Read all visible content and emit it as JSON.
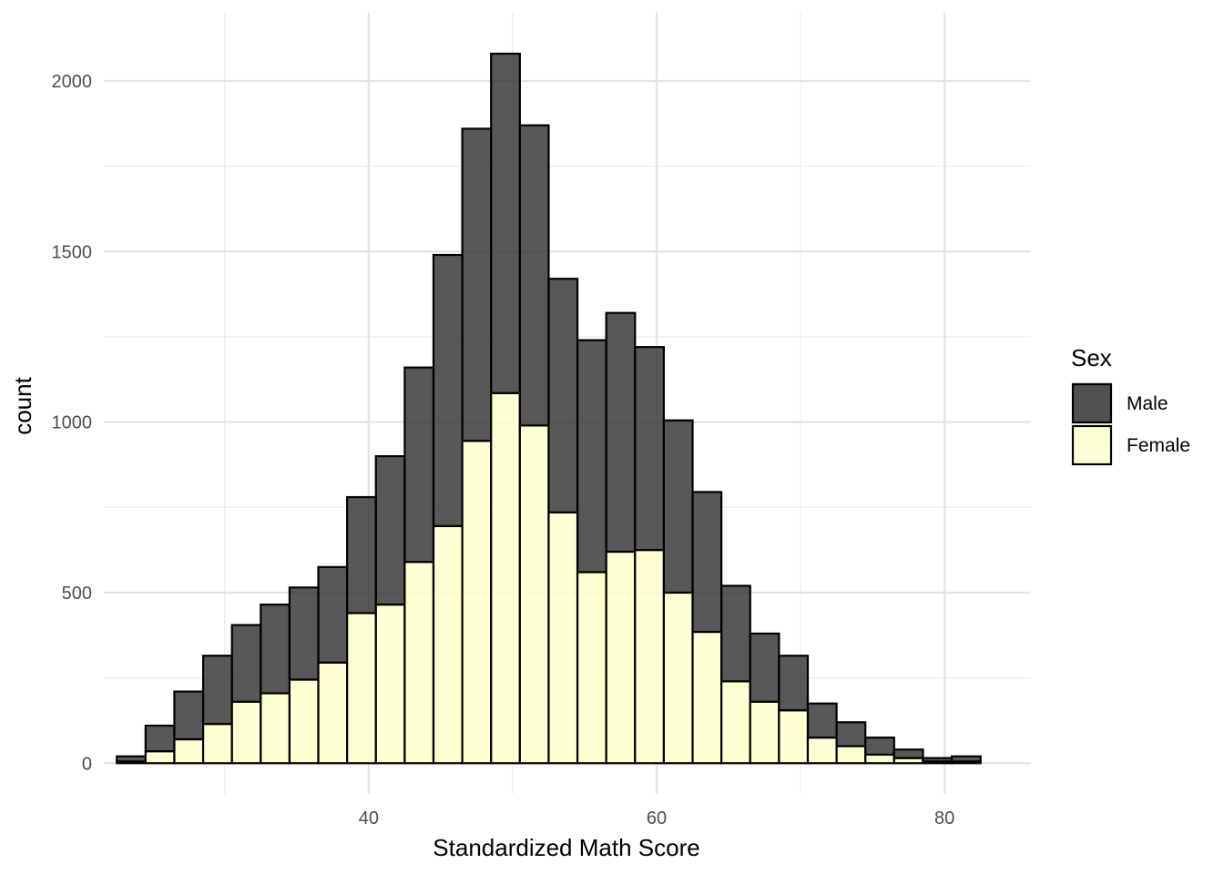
{
  "chart_data": {
    "type": "bar",
    "stacked": true,
    "xlabel": "Standardized Math Score",
    "ylabel": "count",
    "x_ticks": [
      40,
      60,
      80
    ],
    "y_ticks": [
      0,
      500,
      1000,
      1500,
      2000
    ],
    "x_range": [
      21.6,
      86.0
    ],
    "y_range": [
      -90,
      2200
    ],
    "grid": true,
    "bin_width": 2,
    "bin_centers": [
      23.5,
      25.5,
      27.5,
      29.5,
      31.5,
      33.5,
      35.5,
      37.5,
      39.5,
      41.5,
      43.5,
      45.5,
      47.5,
      49.5,
      51.5,
      53.5,
      55.5,
      57.5,
      59.5,
      61.5,
      63.5,
      65.5,
      67.5,
      69.5,
      71.5,
      73.5,
      75.5,
      77.5,
      79.5,
      81.5
    ],
    "legend": {
      "title": "Sex",
      "position": "right"
    },
    "series": [
      {
        "name": "Male",
        "color": "#333333",
        "values": [
          15,
          75,
          140,
          200,
          225,
          260,
          270,
          280,
          340,
          435,
          570,
          795,
          915,
          995,
          880,
          685,
          680,
          700,
          595,
          505,
          410,
          280,
          200,
          160,
          100,
          70,
          50,
          25,
          10,
          15
        ]
      },
      {
        "name": "Female",
        "color": "#ffffcc",
        "values": [
          5,
          35,
          70,
          115,
          180,
          205,
          245,
          295,
          440,
          465,
          590,
          695,
          945,
          1085,
          990,
          735,
          560,
          620,
          625,
          500,
          385,
          240,
          180,
          155,
          75,
          50,
          25,
          15,
          5,
          5
        ]
      }
    ]
  }
}
